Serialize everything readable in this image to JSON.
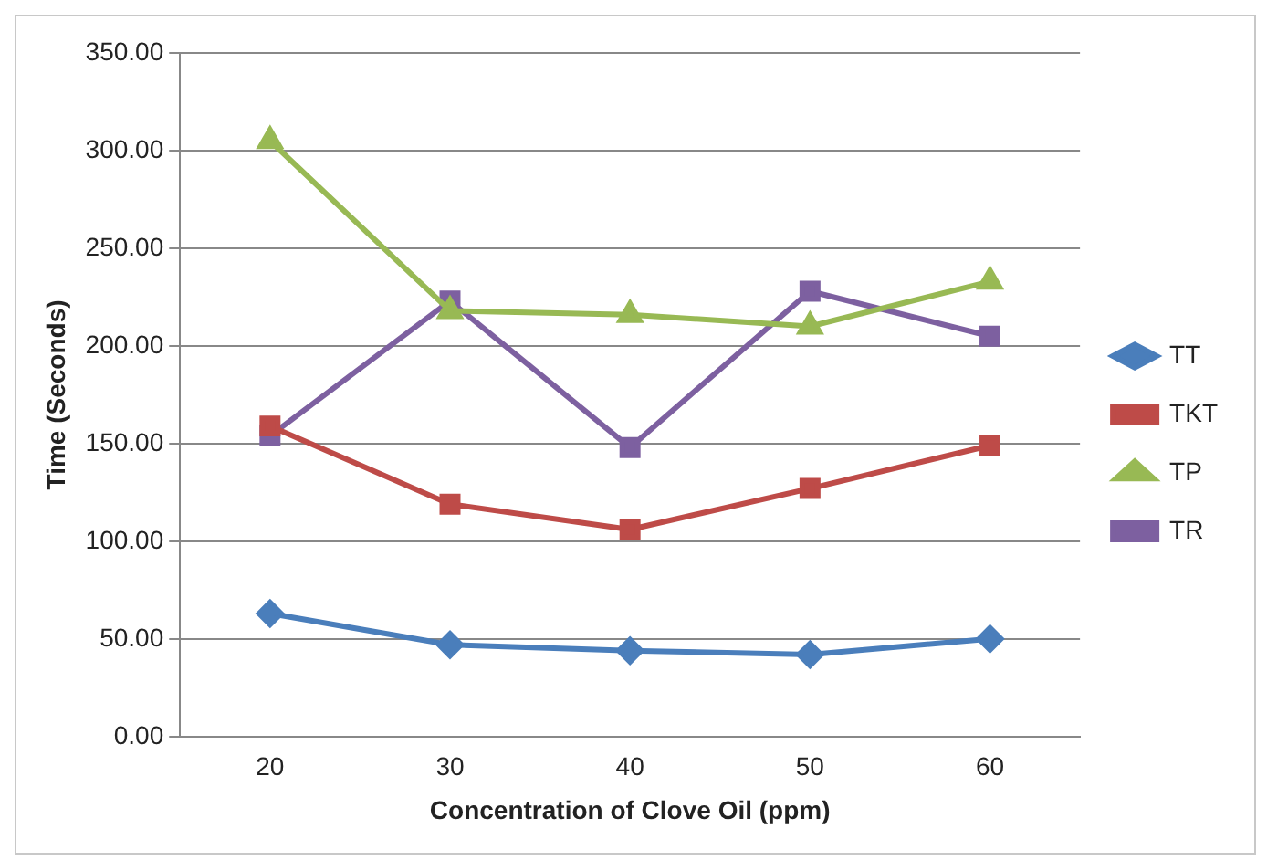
{
  "chart_data": {
    "type": "line",
    "xlabel": "Concentration of Clove Oil (ppm)",
    "ylabel": "Time (Seconds)",
    "categories": [
      "20",
      "30",
      "40",
      "50",
      "60"
    ],
    "series": [
      {
        "name": "TT",
        "color": "#4a7ebb",
        "marker": "diamond",
        "values": [
          63,
          47,
          44,
          42,
          50
        ]
      },
      {
        "name": "TKT",
        "color": "#be4b48",
        "marker": "square",
        "values": [
          159,
          119,
          106,
          127,
          149
        ]
      },
      {
        "name": "TP",
        "color": "#98b954",
        "marker": "triangle",
        "values": [
          305,
          218,
          216,
          210,
          233
        ]
      },
      {
        "name": "TR",
        "color": "#7d60a0",
        "marker": "square",
        "values": [
          154,
          223,
          148,
          228,
          205
        ]
      }
    ],
    "ylim": [
      0,
      350
    ],
    "yticks": [
      {
        "value": 0,
        "label": "0.00"
      },
      {
        "value": 50,
        "label": "50.00"
      },
      {
        "value": 100,
        "label": "100.00"
      },
      {
        "value": 150,
        "label": "150.00"
      },
      {
        "value": 200,
        "label": "200.00"
      },
      {
        "value": 250,
        "label": "250.00"
      },
      {
        "value": 300,
        "label": "300.00"
      },
      {
        "value": 350,
        "label": "350.00"
      }
    ],
    "grid": "y",
    "legend": "right",
    "line_style": "solid"
  }
}
